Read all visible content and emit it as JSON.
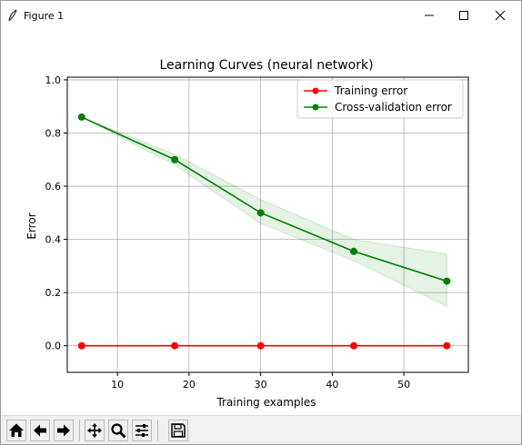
{
  "window": {
    "title": "Figure 1",
    "icon": "feather-icon",
    "controls": [
      "minimize-icon",
      "maximize-icon",
      "close-icon"
    ]
  },
  "toolbar": {
    "tools": [
      {
        "name": "home-button",
        "icon": "home-icon"
      },
      {
        "name": "back-button",
        "icon": "arrow-left-icon"
      },
      {
        "name": "forward-button",
        "icon": "arrow-right-icon"
      },
      {
        "name": "pan-button",
        "icon": "move-icon"
      },
      {
        "name": "zoom-button",
        "icon": "magnifier-icon"
      },
      {
        "name": "configure-subplots-button",
        "icon": "sliders-icon"
      },
      {
        "name": "save-button",
        "icon": "floppy-icon"
      }
    ]
  },
  "colors": {
    "training": "#ff0000",
    "validation": "#008000",
    "band": "#008000",
    "grid": "#b0b0b0"
  },
  "chart_data": {
    "type": "line",
    "title": "Learning Curves (neural network)",
    "xlabel": "Training examples",
    "ylabel": "Error",
    "xlim": [
      3,
      59
    ],
    "ylim": [
      -0.1,
      1.01
    ],
    "xticks": [
      10,
      20,
      30,
      40,
      50
    ],
    "yticks": [
      0.0,
      0.2,
      0.4,
      0.6,
      0.8,
      1.0
    ],
    "xtick_labels": [
      "10",
      "20",
      "30",
      "40",
      "50"
    ],
    "ytick_labels": [
      "0.0",
      "0.2",
      "0.4",
      "0.6",
      "0.8",
      "1.0"
    ],
    "grid": true,
    "legend": "upper right",
    "x": [
      5,
      18,
      30,
      43,
      56
    ],
    "series": [
      {
        "name": "Training error",
        "color": "#ff0000",
        "values": [
          0.0,
          0.0,
          0.0,
          0.0,
          0.0
        ]
      },
      {
        "name": "Cross-validation error",
        "color": "#008000",
        "values": [
          0.86,
          0.7,
          0.5,
          0.355,
          0.243
        ],
        "band_upper": [
          0.86,
          0.72,
          0.55,
          0.4,
          0.345
        ],
        "band_lower": [
          0.86,
          0.68,
          0.46,
          0.32,
          0.148
        ]
      }
    ]
  }
}
